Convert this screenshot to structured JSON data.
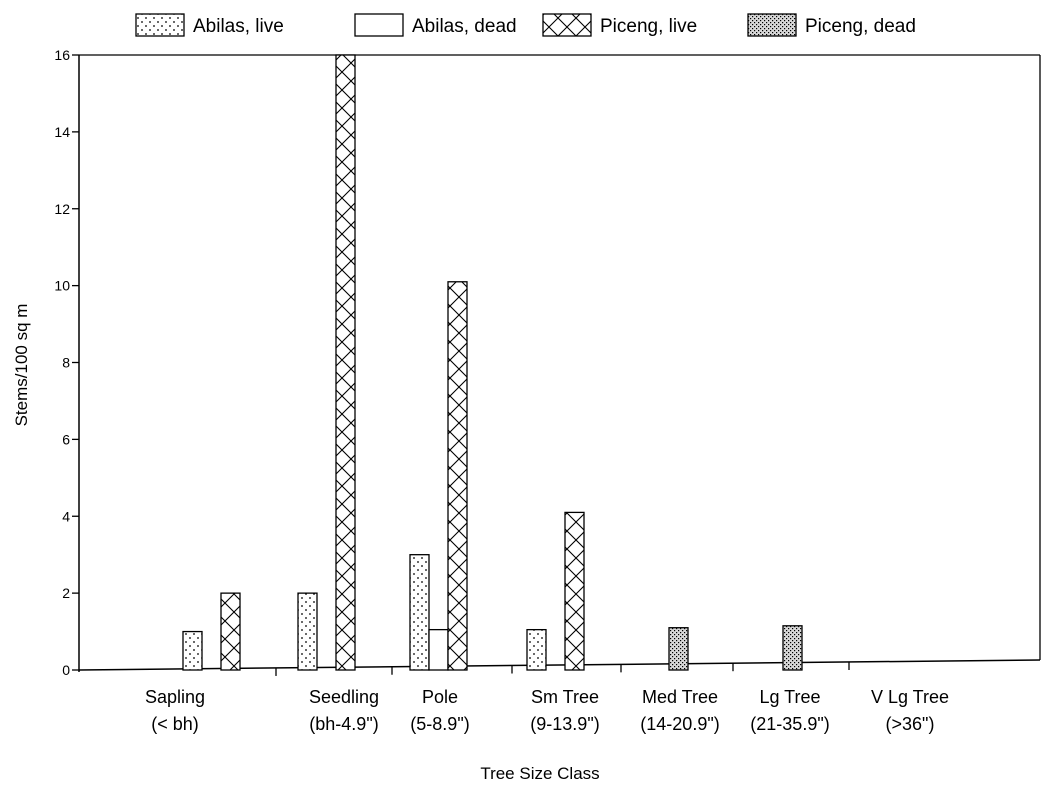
{
  "chart_data": {
    "type": "bar",
    "title": "",
    "xlabel": "Tree Size Class",
    "ylabel": "Stems/100 sq m",
    "ylim": [
      0,
      16
    ],
    "yticks": [
      0,
      2,
      4,
      6,
      8,
      10,
      12,
      14,
      16
    ],
    "grid": false,
    "legend_position": "top",
    "categories": [
      {
        "line1": "Sapling",
        "line2": "(< bh)"
      },
      {
        "line1": "Seedling",
        "line2": "(bh-4.9\")"
      },
      {
        "line1": "Pole",
        "line2": "(5-8.9\")"
      },
      {
        "line1": "Sm Tree",
        "line2": "(9-13.9\")"
      },
      {
        "line1": "Med Tree",
        "line2": "(14-20.9\")"
      },
      {
        "line1": "Lg Tree",
        "line2": "(21-35.9\")"
      },
      {
        "line1": "V Lg Tree",
        "line2": "(>36\")"
      }
    ],
    "series": [
      {
        "name": "Abilas, live",
        "pattern": "dots",
        "values": [
          1.0,
          2.0,
          3.0,
          1.05,
          0,
          0,
          0
        ]
      },
      {
        "name": "Abilas, dead",
        "pattern": "empty",
        "values": [
          0,
          0,
          1.05,
          0,
          0,
          0,
          0
        ]
      },
      {
        "name": "Piceng, live",
        "pattern": "crosshatch",
        "values": [
          2.0,
          16.0,
          10.1,
          4.1,
          0,
          0,
          0
        ]
      },
      {
        "name": "Piceng, dead",
        "pattern": "dense-dots",
        "values": [
          0,
          0,
          0,
          0,
          1.1,
          1.15,
          0
        ]
      }
    ]
  }
}
